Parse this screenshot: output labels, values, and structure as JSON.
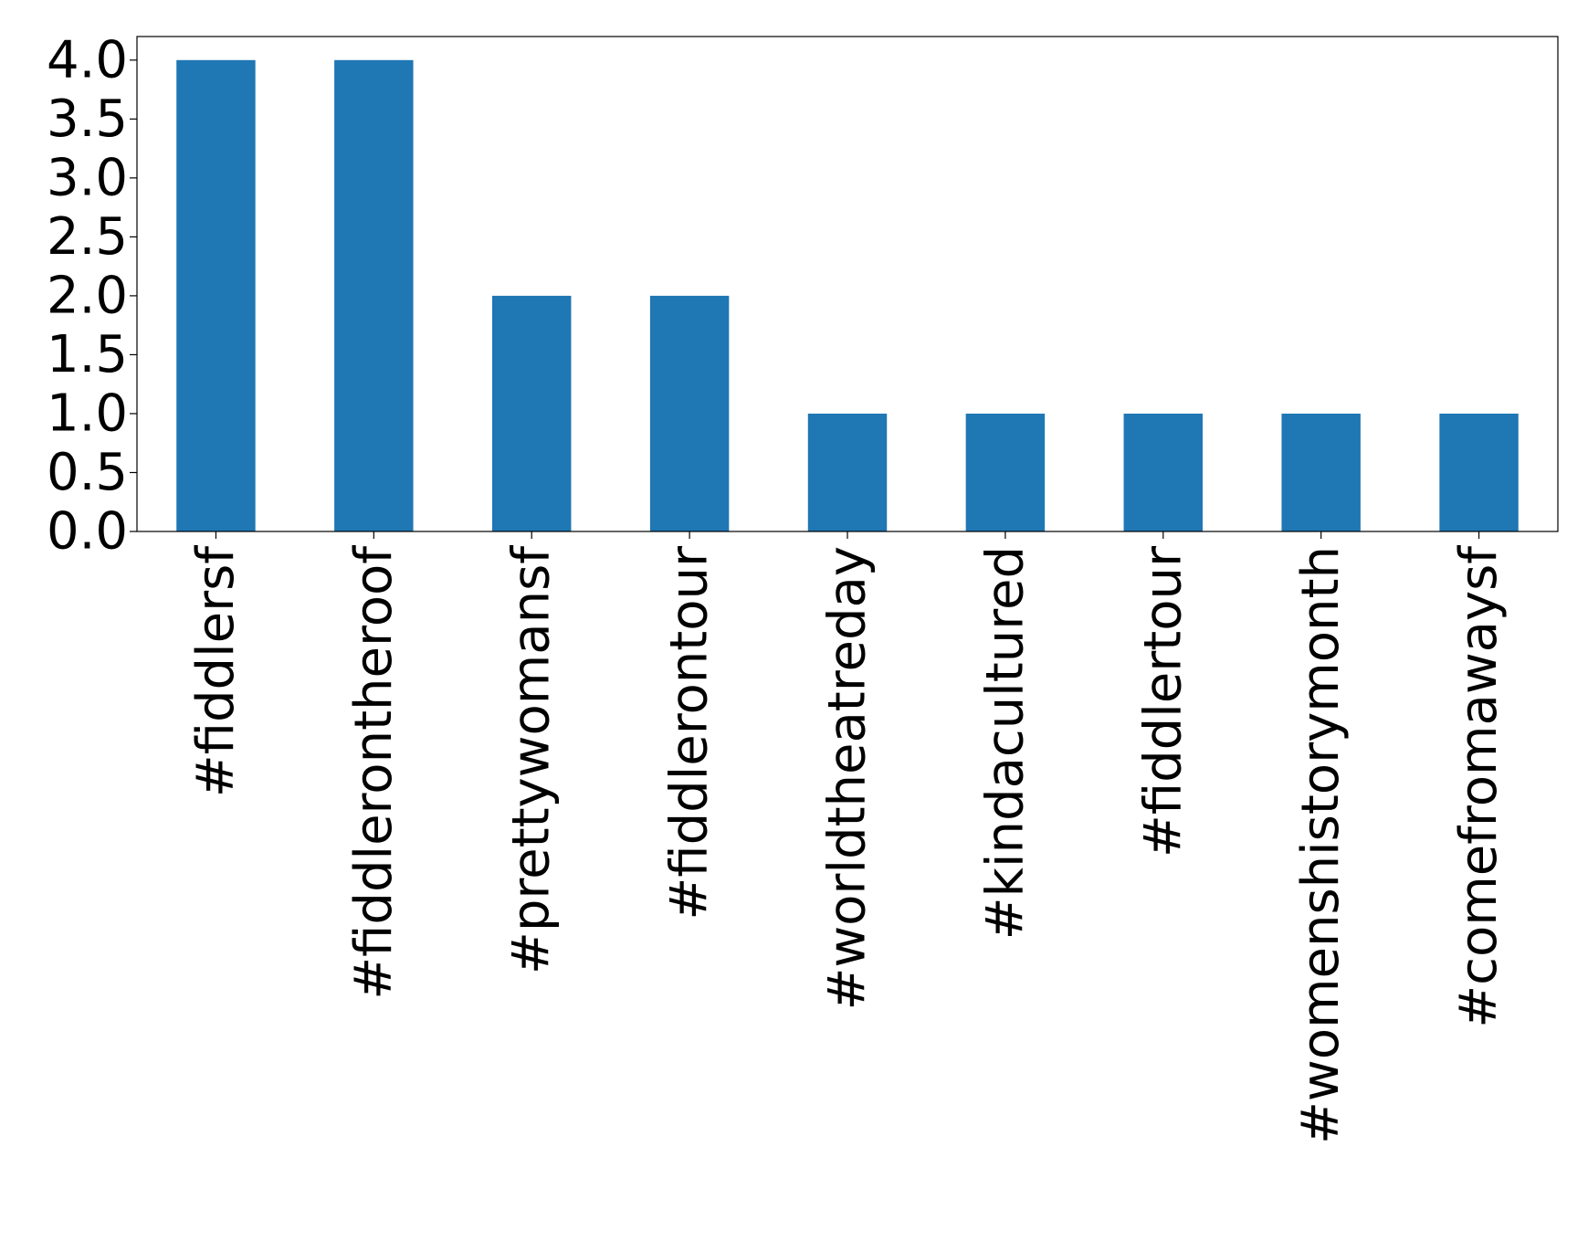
{
  "chart_data": {
    "type": "bar",
    "title": "",
    "xlabel": "",
    "ylabel": "",
    "categories": [
      "#fiddlersf",
      "#fiddlerontheroof",
      "#prettywomansf",
      "#fiddlerontour",
      "#worldtheatreday",
      "#kindacultured",
      "#fiddlertour",
      "#womenshistorymonth",
      "#comefromawaysf"
    ],
    "values": [
      4,
      4,
      2,
      2,
      1,
      1,
      1,
      1,
      1
    ],
    "ylim": [
      0,
      4.2
    ],
    "yticks": [
      0.0,
      0.5,
      1.0,
      1.5,
      2.0,
      2.5,
      3.0,
      3.5,
      4.0
    ],
    "ytick_labels": [
      "0.0",
      "0.5",
      "1.0",
      "1.5",
      "2.0",
      "2.5",
      "3.0",
      "3.5",
      "4.0"
    ],
    "bar_color": "#1f77b4",
    "grid": false,
    "legend": "none"
  }
}
